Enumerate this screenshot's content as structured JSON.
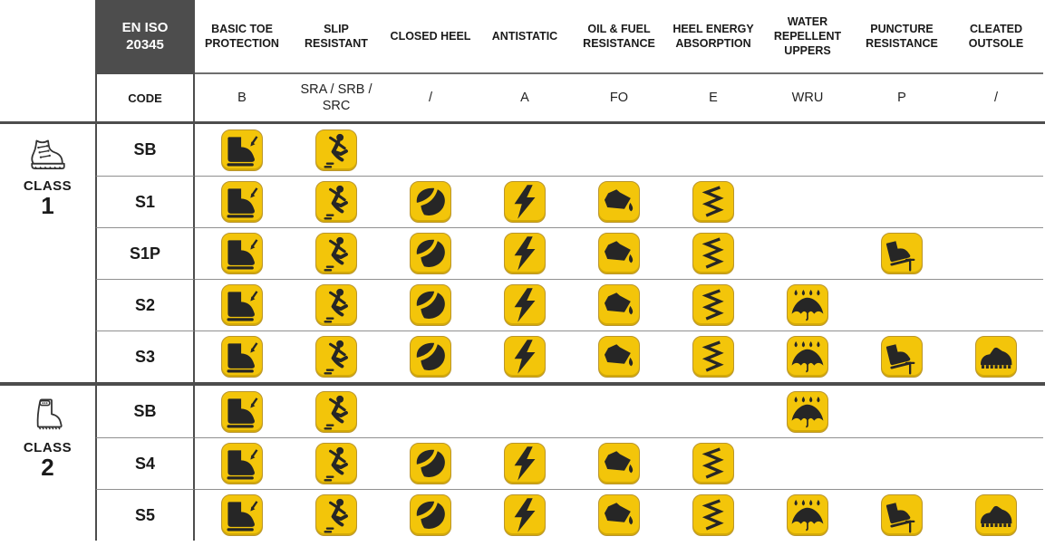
{
  "header": {
    "standard": "EN ISO 20345",
    "code_label": "CODE",
    "columns": [
      {
        "label": "BASIC TOE PROTECTION",
        "code": "B",
        "icon": "toe-protection"
      },
      {
        "label": "SLIP RESISTANT",
        "code": "SRA / SRB / SRC",
        "icon": "slip-resistant"
      },
      {
        "label": "CLOSED HEEL",
        "code": "/",
        "icon": "closed-heel"
      },
      {
        "label": "ANTISTATIC",
        "code": "A",
        "icon": "antistatic"
      },
      {
        "label": "OIL & FUEL RESISTANCE",
        "code": "FO",
        "icon": "oil-fuel"
      },
      {
        "label": "HEEL ENERGY ABSORPTION",
        "code": "E",
        "icon": "heel-energy"
      },
      {
        "label": "WATER REPELLENT UPPERS",
        "code": "WRU",
        "icon": "water-repellent"
      },
      {
        "label": "PUNCTURE RESISTANCE",
        "code": "P",
        "icon": "puncture"
      },
      {
        "label": "CLEATED OUTSOLE",
        "code": "/",
        "icon": "cleated-outsole"
      }
    ]
  },
  "classes": [
    {
      "label": "CLASS",
      "number": "1",
      "boot_icon": "leather-boot-icon",
      "rows": [
        {
          "code": "SB",
          "features": [
            "toe-protection",
            "slip-resistant"
          ]
        },
        {
          "code": "S1",
          "features": [
            "toe-protection",
            "slip-resistant",
            "closed-heel",
            "antistatic",
            "oil-fuel",
            "heel-energy"
          ]
        },
        {
          "code": "S1P",
          "features": [
            "toe-protection",
            "slip-resistant",
            "closed-heel",
            "antistatic",
            "oil-fuel",
            "heel-energy",
            "puncture"
          ]
        },
        {
          "code": "S2",
          "features": [
            "toe-protection",
            "slip-resistant",
            "closed-heel",
            "antistatic",
            "oil-fuel",
            "heel-energy",
            "water-repellent"
          ]
        },
        {
          "code": "S3",
          "features": [
            "toe-protection",
            "slip-resistant",
            "closed-heel",
            "antistatic",
            "oil-fuel",
            "heel-energy",
            "water-repellent",
            "puncture",
            "cleated-outsole"
          ]
        }
      ]
    },
    {
      "label": "CLASS",
      "number": "2",
      "boot_icon": "rubber-boot-icon",
      "rows": [
        {
          "code": "SB",
          "features": [
            "toe-protection",
            "slip-resistant",
            "water-repellent"
          ]
        },
        {
          "code": "S4",
          "features": [
            "toe-protection",
            "slip-resistant",
            "closed-heel",
            "antistatic",
            "oil-fuel",
            "heel-energy"
          ]
        },
        {
          "code": "S5",
          "features": [
            "toe-protection",
            "slip-resistant",
            "closed-heel",
            "antistatic",
            "oil-fuel",
            "heel-energy",
            "water-repellent",
            "puncture",
            "cleated-outsole"
          ]
        }
      ]
    }
  ],
  "colors": {
    "badge_yellow": "#f3c50a",
    "badge_border": "#b9952d",
    "glyph_dark": "#262626",
    "header_box": "#4d4d4d",
    "grid_thick": "#4d4d4d",
    "grid_thin": "#909090"
  }
}
